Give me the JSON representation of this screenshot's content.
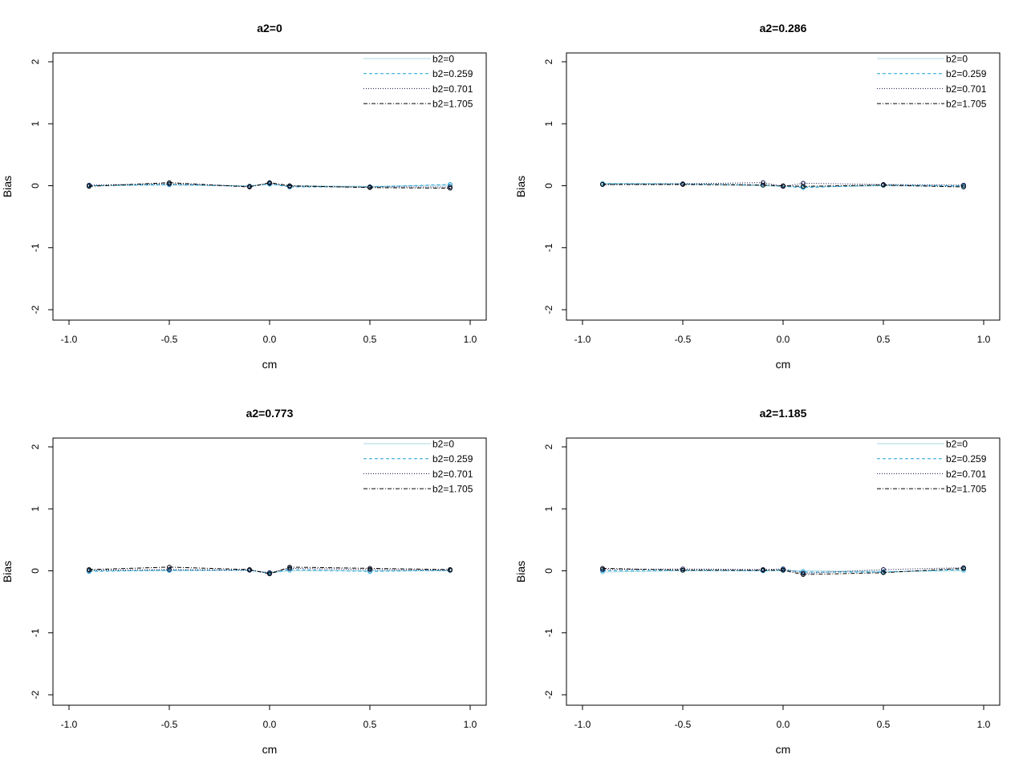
{
  "series_styles": [
    {
      "name": "b2=0",
      "color": "#a8d8e0",
      "dash": "none",
      "width": 1
    },
    {
      "name": "b2=0.259",
      "color": "#1f9fd6",
      "dash": "4,3",
      "width": 1
    },
    {
      "name": "b2=0.701",
      "color": "#0a0a40",
      "dash": "1,2",
      "width": 1
    },
    {
      "name": "b2=1.705",
      "color": "#000000",
      "dash": "5,2,1,2",
      "width": 1
    }
  ],
  "chart_data": [
    {
      "type": "line",
      "title": "a2=0",
      "xlabel": "cm",
      "ylabel": "Bias",
      "xlim": [
        -1.0,
        1.0
      ],
      "ylim": [
        -2,
        2
      ],
      "xticks": [
        "-1.0",
        "-0.5",
        "0.0",
        "0.5",
        "1.0"
      ],
      "yticks": [
        "-2",
        "-1",
        "0",
        "1",
        "2"
      ],
      "legend_position": "top-right",
      "x": [
        -0.9,
        -0.5,
        -0.1,
        0.0,
        0.1,
        0.5,
        0.9
      ],
      "series": [
        {
          "name": "b2=0",
          "values": [
            0.0,
            0.01,
            0.0,
            0.02,
            0.0,
            -0.01,
            0.01
          ]
        },
        {
          "name": "b2=0.259",
          "values": [
            0.0,
            0.02,
            -0.01,
            0.03,
            -0.02,
            -0.02,
            0.02
          ]
        },
        {
          "name": "b2=0.701",
          "values": [
            0.01,
            0.03,
            -0.01,
            0.04,
            -0.01,
            -0.02,
            -0.02
          ]
        },
        {
          "name": "b2=1.705",
          "values": [
            -0.01,
            0.05,
            -0.02,
            0.05,
            0.0,
            -0.03,
            -0.04
          ]
        }
      ]
    },
    {
      "type": "line",
      "title": "a2=0.286",
      "xlabel": "cm",
      "ylabel": "Bias",
      "xlim": [
        -1.0,
        1.0
      ],
      "ylim": [
        -2,
        2
      ],
      "xticks": [
        "-1.0",
        "-0.5",
        "0.0",
        "0.5",
        "1.0"
      ],
      "yticks": [
        "-2",
        "-1",
        "0",
        "1",
        "2"
      ],
      "legend_position": "top-right",
      "x": [
        -0.9,
        -0.5,
        -0.1,
        0.0,
        0.1,
        0.5,
        0.9
      ],
      "series": [
        {
          "name": "b2=0",
          "values": [
            0.04,
            0.03,
            0.0,
            -0.01,
            -0.02,
            0.0,
            -0.01
          ]
        },
        {
          "name": "b2=0.259",
          "values": [
            0.03,
            0.03,
            0.01,
            -0.01,
            -0.03,
            0.01,
            0.0
          ]
        },
        {
          "name": "b2=0.701",
          "values": [
            0.02,
            0.03,
            0.05,
            -0.01,
            0.04,
            0.02,
            0.01
          ]
        },
        {
          "name": "b2=1.705",
          "values": [
            0.02,
            0.02,
            0.01,
            0.0,
            -0.01,
            0.01,
            -0.02
          ]
        }
      ]
    },
    {
      "type": "line",
      "title": "a2=0.773",
      "xlabel": "cm",
      "ylabel": "Bias",
      "xlim": [
        -1.0,
        1.0
      ],
      "ylim": [
        -2,
        2
      ],
      "xticks": [
        "-1.0",
        "-0.5",
        "0.0",
        "0.5",
        "1.0"
      ],
      "yticks": [
        "-2",
        "-1",
        "0",
        "1",
        "2"
      ],
      "legend_position": "top-right",
      "x": [
        -0.9,
        -0.5,
        -0.1,
        0.0,
        0.1,
        0.5,
        0.9
      ],
      "series": [
        {
          "name": "b2=0",
          "values": [
            0.0,
            0.0,
            0.01,
            -0.03,
            0.0,
            0.0,
            0.0
          ]
        },
        {
          "name": "b2=0.259",
          "values": [
            -0.01,
            0.01,
            0.01,
            -0.04,
            0.02,
            -0.01,
            0.01
          ]
        },
        {
          "name": "b2=0.701",
          "values": [
            0.01,
            0.02,
            0.01,
            -0.03,
            0.04,
            0.02,
            0.01
          ]
        },
        {
          "name": "b2=1.705",
          "values": [
            0.02,
            0.06,
            0.02,
            -0.05,
            0.06,
            0.04,
            0.02
          ]
        }
      ]
    },
    {
      "type": "line",
      "title": "a2=1.185",
      "xlabel": "cm",
      "ylabel": "Bias",
      "xlim": [
        -1.0,
        1.0
      ],
      "ylim": [
        -2,
        2
      ],
      "xticks": [
        "-1.0",
        "-0.5",
        "0.0",
        "0.5",
        "1.0"
      ],
      "yticks": [
        "-2",
        "-1",
        "0",
        "1",
        "2"
      ],
      "legend_position": "top-right",
      "x": [
        -0.9,
        -0.5,
        -0.1,
        0.0,
        0.1,
        0.5,
        0.9
      ],
      "series": [
        {
          "name": "b2=0",
          "values": [
            -0.02,
            0.0,
            0.0,
            0.0,
            0.0,
            -0.01,
            0.0
          ]
        },
        {
          "name": "b2=0.259",
          "values": [
            0.0,
            0.01,
            0.0,
            0.02,
            -0.02,
            -0.02,
            0.02
          ]
        },
        {
          "name": "b2=0.701",
          "values": [
            0.02,
            0.03,
            0.02,
            0.03,
            -0.04,
            0.02,
            0.05
          ]
        },
        {
          "name": "b2=1.705",
          "values": [
            0.04,
            0.01,
            0.01,
            0.01,
            -0.06,
            -0.03,
            0.04
          ]
        }
      ]
    }
  ]
}
